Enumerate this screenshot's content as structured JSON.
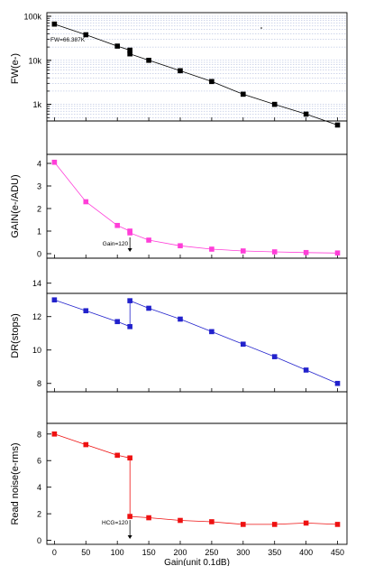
{
  "chart_data": [
    {
      "type": "scatter",
      "y_scale": "log",
      "ylabel": "FW(e-)",
      "xlim": [
        -12,
        465
      ],
      "ylim": [
        250,
        100000
      ],
      "yticks": [
        {
          "value": 1000,
          "label": "1k"
        },
        {
          "value": 10000,
          "label": "10k"
        },
        {
          "value": 100000,
          "label": "100k"
        }
      ],
      "grid": true,
      "color": "#000000",
      "annotation": "FW=66.387K",
      "x": [
        0,
        50,
        100,
        120,
        120,
        150,
        200,
        250,
        300,
        350,
        400,
        450
      ],
      "y": [
        66387,
        38000,
        21000,
        17000,
        14000,
        10000,
        5800,
        3300,
        1700,
        1000,
        600,
        340
      ]
    },
    {
      "type": "line",
      "ylabel": "GAIN(e-/ADU)",
      "xlim": [
        -12,
        465
      ],
      "ylim": [
        -0.2,
        4.4
      ],
      "yticks": [
        0,
        1,
        2,
        3,
        4
      ],
      "grid": false,
      "color": "#ff3ed8",
      "annotation": "Gain=120",
      "x": [
        0,
        50,
        100,
        120,
        120,
        150,
        200,
        250,
        300,
        350,
        400,
        450
      ],
      "y": [
        4.05,
        2.3,
        1.25,
        1.0,
        0.92,
        0.6,
        0.35,
        0.2,
        0.12,
        0.08,
        0.05,
        0.03
      ]
    },
    {
      "type": "line",
      "ylabel": "DR(stops)",
      "xlim": [
        -12,
        465
      ],
      "ylim": [
        7.5,
        14.2
      ],
      "yticks": [
        8,
        10,
        12,
        14
      ],
      "grid": false,
      "color": "#2222cc",
      "x": [
        0,
        50,
        100,
        120,
        120,
        150,
        200,
        250,
        300,
        350,
        400,
        450
      ],
      "y": [
        13.0,
        12.35,
        11.7,
        11.4,
        12.95,
        12.5,
        11.85,
        11.1,
        10.35,
        9.6,
        8.8,
        8.0
      ]
    },
    {
      "type": "line",
      "ylabel": "Read noise(e-rms)",
      "xlabel": "Gain(unit 0.1dB)",
      "xlim": [
        -12,
        465
      ],
      "ylim": [
        -0.3,
        8.8
      ],
      "yticks": [
        0,
        2,
        4,
        6,
        8
      ],
      "xticks": [
        0,
        50,
        100,
        150,
        200,
        250,
        300,
        350,
        400,
        450
      ],
      "grid": false,
      "color": "#ee1111",
      "annotation": "HCG=120",
      "x": [
        0,
        50,
        100,
        120,
        120,
        150,
        200,
        250,
        300,
        350,
        400,
        450
      ],
      "y": [
        8.0,
        7.2,
        6.4,
        6.2,
        1.8,
        1.7,
        1.5,
        1.4,
        1.2,
        1.2,
        1.3,
        1.2
      ]
    }
  ]
}
